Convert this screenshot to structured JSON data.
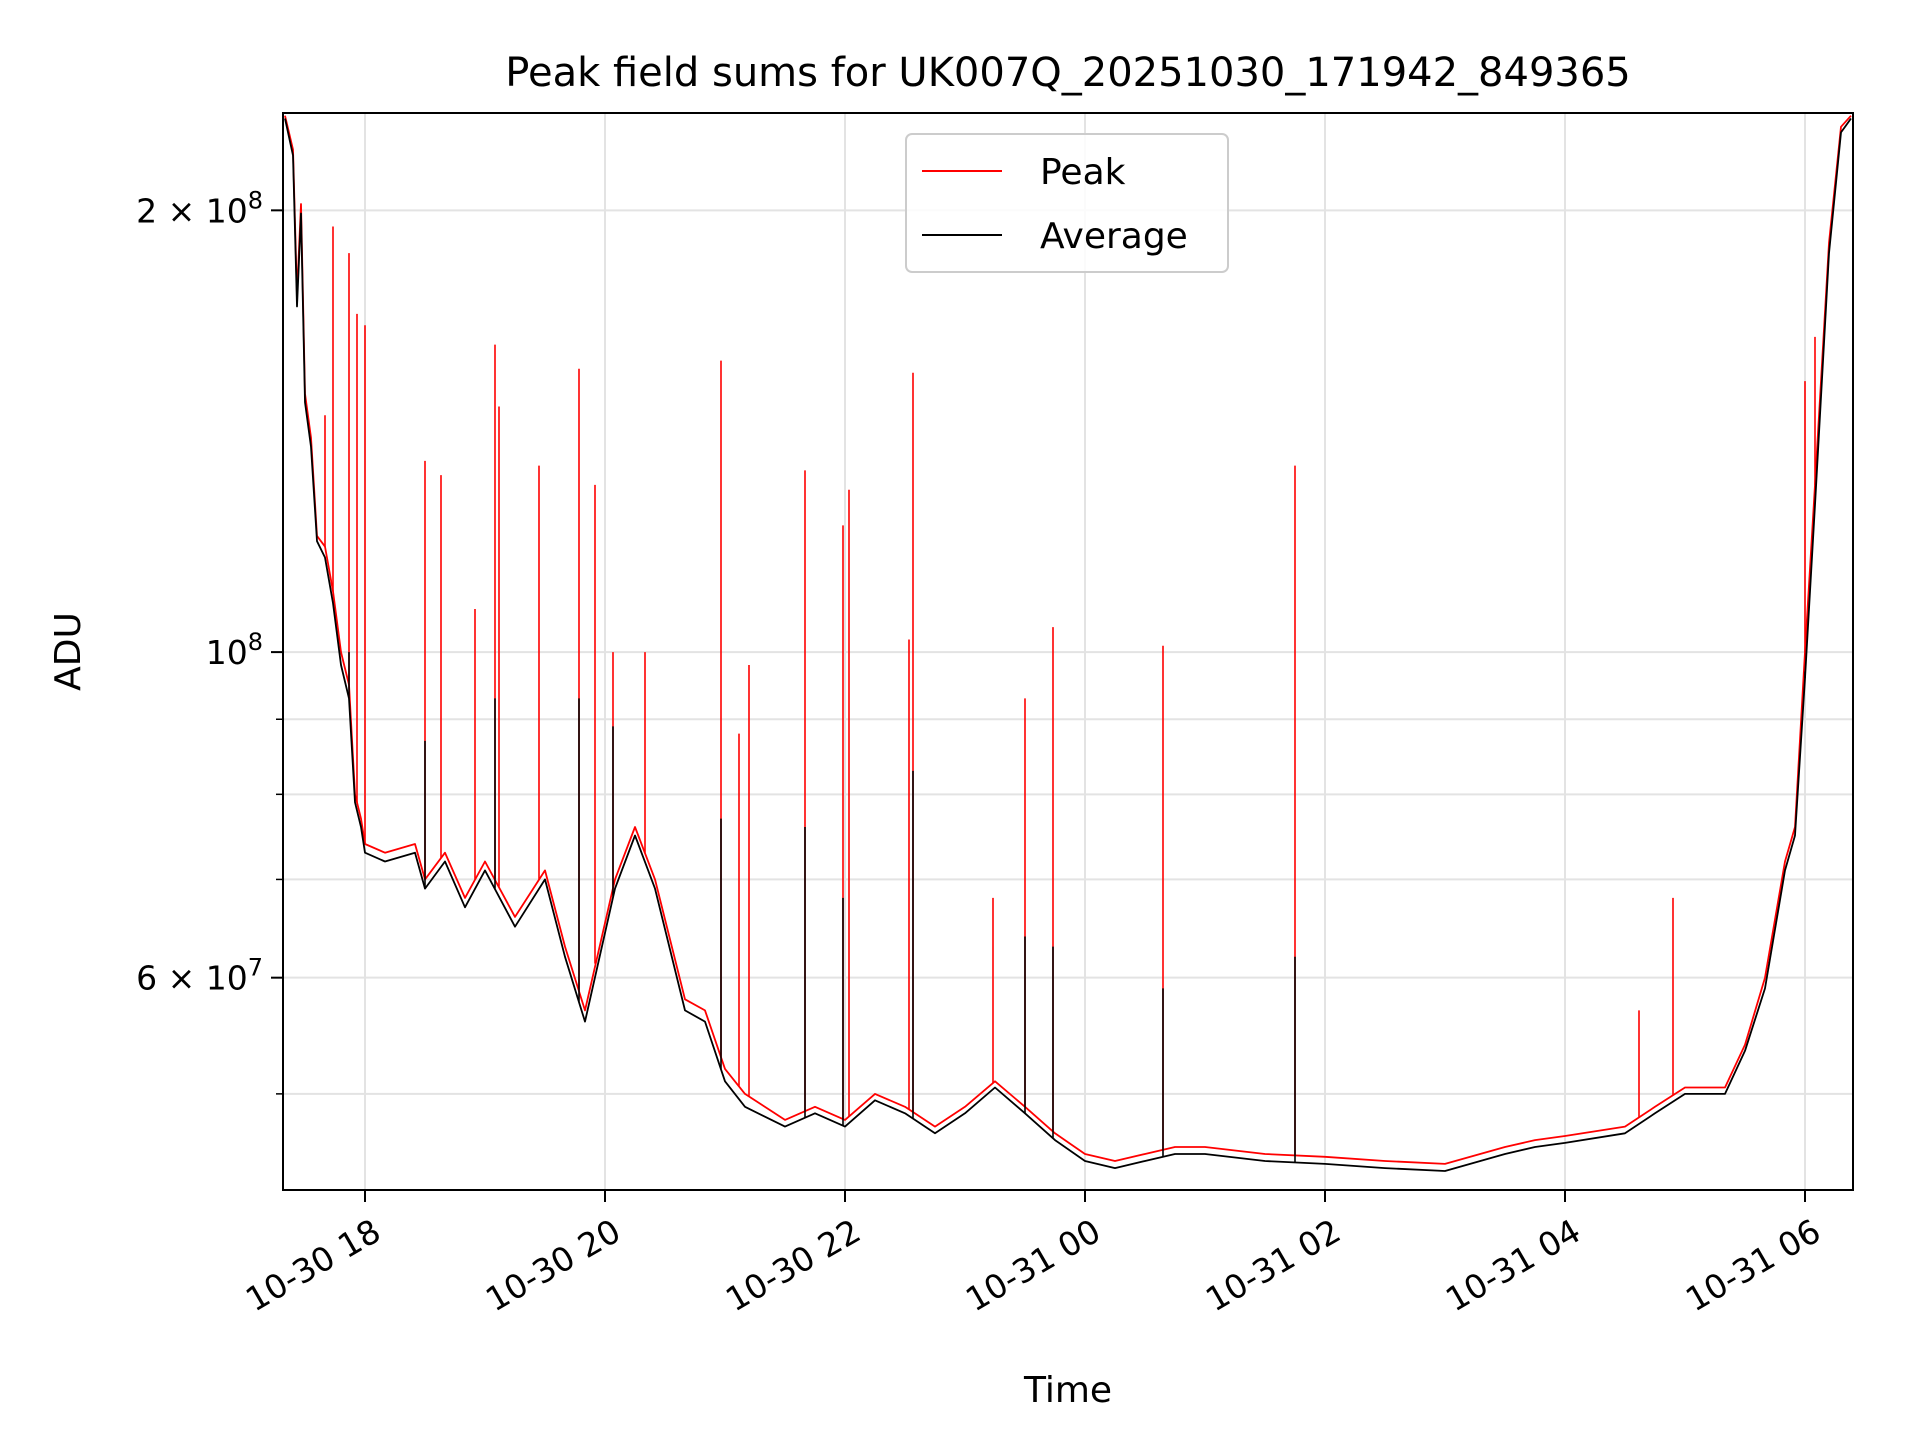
{
  "chart_data": {
    "type": "line",
    "title": "Peak field sums for UK007Q_20251030_171942_849365",
    "xlabel": "Time",
    "ylabel": "ADU",
    "x_range": [
      "2025-10-30 17:19",
      "2025-10-31 06:24"
    ],
    "y_scale": "log",
    "ylim": [
      43000000,
      233000000
    ],
    "grid": true,
    "legend_position": "top-center",
    "x_ticks": [
      "10-30 18",
      "10-30 20",
      "10-30 22",
      "10-31 00",
      "10-31 02",
      "10-31 04",
      "10-31 06"
    ],
    "x_tick_times": [
      "2025-10-30 18:00",
      "2025-10-30 20:00",
      "2025-10-30 22:00",
      "2025-10-31 00:00",
      "2025-10-31 02:00",
      "2025-10-31 04:00",
      "2025-10-31 06:00"
    ],
    "y_ticks": [
      {
        "value": 200000000,
        "base": "2 × 10",
        "exp": "8"
      },
      {
        "value": 100000000,
        "base": "10",
        "exp": "8"
      },
      {
        "value": 60000000,
        "base": "6 × 10",
        "exp": "7"
      }
    ],
    "y_minor_ticks": [
      50000000,
      70000000,
      80000000,
      90000000
    ],
    "series": [
      {
        "name": "Peak",
        "color": "#ff0000",
        "points": [
          [
            "2025-10-30 17:20",
            232000000
          ],
          [
            "2025-10-30 17:24",
            220000000
          ],
          [
            "2025-10-30 17:26",
            175000000
          ],
          [
            "2025-10-30 17:28",
            202000000
          ],
          [
            "2025-10-30 17:30",
            150000000
          ],
          [
            "2025-10-30 17:33",
            140000000
          ],
          [
            "2025-10-30 17:36",
            120000000
          ],
          [
            "2025-10-30 17:40",
            118000000
          ],
          [
            "2025-10-30 17:44",
            110000000
          ],
          [
            "2025-10-30 17:48",
            100000000
          ],
          [
            "2025-10-30 17:52",
            95000000
          ],
          [
            "2025-10-30 17:55",
            80000000
          ],
          [
            "2025-10-30 17:58",
            77000000
          ],
          [
            "2025-10-30 18:00",
            74000000
          ],
          [
            "2025-10-30 18:10",
            73000000
          ],
          [
            "2025-10-30 18:25",
            74000000
          ],
          [
            "2025-10-30 18:30",
            70000000
          ],
          [
            "2025-10-30 18:40",
            73000000
          ],
          [
            "2025-10-30 18:50",
            68000000
          ],
          [
            "2025-10-30 19:00",
            72000000
          ],
          [
            "2025-10-30 19:15",
            66000000
          ],
          [
            "2025-10-30 19:30",
            71000000
          ],
          [
            "2025-10-30 19:40",
            63000000
          ],
          [
            "2025-10-30 19:50",
            57000000
          ],
          [
            "2025-10-30 20:05",
            70000000
          ],
          [
            "2025-10-30 20:15",
            76000000
          ],
          [
            "2025-10-30 20:25",
            70000000
          ],
          [
            "2025-10-30 20:40",
            58000000
          ],
          [
            "2025-10-30 20:50",
            57000000
          ],
          [
            "2025-10-30 21:00",
            52000000
          ],
          [
            "2025-10-30 21:10",
            50000000
          ],
          [
            "2025-10-30 21:30",
            48000000
          ],
          [
            "2025-10-30 21:45",
            49000000
          ],
          [
            "2025-10-30 22:00",
            48000000
          ],
          [
            "2025-10-30 22:15",
            50000000
          ],
          [
            "2025-10-30 22:30",
            49000000
          ],
          [
            "2025-10-30 22:45",
            47500000
          ],
          [
            "2025-10-30 23:00",
            49000000
          ],
          [
            "2025-10-30 23:15",
            51000000
          ],
          [
            "2025-10-30 23:30",
            49000000
          ],
          [
            "2025-10-30 23:45",
            47000000
          ],
          [
            "2025-10-31 00:00",
            45500000
          ],
          [
            "2025-10-31 00:15",
            45000000
          ],
          [
            "2025-10-31 00:30",
            45500000
          ],
          [
            "2025-10-31 00:45",
            46000000
          ],
          [
            "2025-10-31 01:00",
            46000000
          ],
          [
            "2025-10-31 01:30",
            45500000
          ],
          [
            "2025-10-31 02:00",
            45300000
          ],
          [
            "2025-10-31 02:30",
            45000000
          ],
          [
            "2025-10-31 03:00",
            44800000
          ],
          [
            "2025-10-31 03:30",
            46000000
          ],
          [
            "2025-10-31 03:45",
            46500000
          ],
          [
            "2025-10-31 04:00",
            46800000
          ],
          [
            "2025-10-31 04:30",
            47500000
          ],
          [
            "2025-10-31 04:45",
            49000000
          ],
          [
            "2025-10-31 05:00",
            50500000
          ],
          [
            "2025-10-31 05:20",
            50500000
          ],
          [
            "2025-10-31 05:30",
            54000000
          ],
          [
            "2025-10-31 05:40",
            60000000
          ],
          [
            "2025-10-31 05:50",
            72000000
          ],
          [
            "2025-10-31 05:55",
            76000000
          ],
          [
            "2025-10-31 06:00",
            100000000
          ],
          [
            "2025-10-31 06:05",
            130000000
          ],
          [
            "2025-10-31 06:12",
            190000000
          ],
          [
            "2025-10-31 06:18",
            228000000
          ],
          [
            "2025-10-31 06:23",
            232000000
          ]
        ],
        "spikes": [
          [
            "2025-10-30 17:40",
            145000000
          ],
          [
            "2025-10-30 17:44",
            195000000
          ],
          [
            "2025-10-30 17:52",
            187000000
          ],
          [
            "2025-10-30 17:56",
            170000000
          ],
          [
            "2025-10-30 18:00",
            167000000
          ],
          [
            "2025-10-30 18:30",
            135000000
          ],
          [
            "2025-10-30 18:38",
            132000000
          ],
          [
            "2025-10-30 18:55",
            107000000
          ],
          [
            "2025-10-30 19:05",
            162000000
          ],
          [
            "2025-10-30 19:07",
            147000000
          ],
          [
            "2025-10-30 19:27",
            134000000
          ],
          [
            "2025-10-30 19:47",
            156000000
          ],
          [
            "2025-10-30 19:55",
            130000000
          ],
          [
            "2025-10-30 20:04",
            100000000
          ],
          [
            "2025-10-30 20:20",
            100000000
          ],
          [
            "2025-10-30 20:58",
            158000000
          ],
          [
            "2025-10-30 21:07",
            88000000
          ],
          [
            "2025-10-30 21:12",
            98000000
          ],
          [
            "2025-10-30 21:40",
            133000000
          ],
          [
            "2025-10-30 21:59",
            122000000
          ],
          [
            "2025-10-30 22:02",
            129000000
          ],
          [
            "2025-10-30 22:32",
            102000000
          ],
          [
            "2025-10-30 22:34",
            155000000
          ],
          [
            "2025-10-30 23:14",
            68000000
          ],
          [
            "2025-10-30 23:30",
            93000000
          ],
          [
            "2025-10-30 23:44",
            104000000
          ],
          [
            "2025-10-31 00:39",
            101000000
          ],
          [
            "2025-10-31 01:45",
            134000000
          ],
          [
            "2025-10-31 04:37",
            57000000
          ],
          [
            "2025-10-31 04:54",
            68000000
          ],
          [
            "2025-10-31 06:00",
            153000000
          ],
          [
            "2025-10-31 06:05",
            164000000
          ]
        ]
      },
      {
        "name": "Average",
        "color": "#000000",
        "points": [
          [
            "2025-10-30 17:20",
            231000000
          ],
          [
            "2025-10-30 17:24",
            218000000
          ],
          [
            "2025-10-30 17:26",
            172000000
          ],
          [
            "2025-10-30 17:28",
            199000000
          ],
          [
            "2025-10-30 17:30",
            148000000
          ],
          [
            "2025-10-30 17:33",
            138000000
          ],
          [
            "2025-10-30 17:36",
            119000000
          ],
          [
            "2025-10-30 17:40",
            116000000
          ],
          [
            "2025-10-30 17:44",
            108000000
          ],
          [
            "2025-10-30 17:48",
            98000000
          ],
          [
            "2025-10-30 17:52",
            93000000
          ],
          [
            "2025-10-30 17:55",
            79000000
          ],
          [
            "2025-10-30 17:58",
            76000000
          ],
          [
            "2025-10-30 18:00",
            73000000
          ],
          [
            "2025-10-30 18:10",
            72000000
          ],
          [
            "2025-10-30 18:25",
            73000000
          ],
          [
            "2025-10-30 18:30",
            69000000
          ],
          [
            "2025-10-30 18:40",
            72000000
          ],
          [
            "2025-10-30 18:50",
            67000000
          ],
          [
            "2025-10-30 19:00",
            71000000
          ],
          [
            "2025-10-30 19:15",
            65000000
          ],
          [
            "2025-10-30 19:30",
            70000000
          ],
          [
            "2025-10-30 19:40",
            62000000
          ],
          [
            "2025-10-30 19:50",
            56000000
          ],
          [
            "2025-10-30 20:05",
            69000000
          ],
          [
            "2025-10-30 20:15",
            75000000
          ],
          [
            "2025-10-30 20:25",
            69000000
          ],
          [
            "2025-10-30 20:40",
            57000000
          ],
          [
            "2025-10-30 20:50",
            56000000
          ],
          [
            "2025-10-30 21:00",
            51000000
          ],
          [
            "2025-10-30 21:10",
            49000000
          ],
          [
            "2025-10-30 21:30",
            47500000
          ],
          [
            "2025-10-30 21:45",
            48500000
          ],
          [
            "2025-10-30 22:00",
            47500000
          ],
          [
            "2025-10-30 22:15",
            49500000
          ],
          [
            "2025-10-30 22:30",
            48500000
          ],
          [
            "2025-10-30 22:45",
            47000000
          ],
          [
            "2025-10-30 23:00",
            48500000
          ],
          [
            "2025-10-30 23:15",
            50500000
          ],
          [
            "2025-10-30 23:30",
            48500000
          ],
          [
            "2025-10-30 23:45",
            46500000
          ],
          [
            "2025-10-31 00:00",
            45000000
          ],
          [
            "2025-10-31 00:15",
            44500000
          ],
          [
            "2025-10-31 00:30",
            45000000
          ],
          [
            "2025-10-31 00:45",
            45500000
          ],
          [
            "2025-10-31 01:00",
            45500000
          ],
          [
            "2025-10-31 01:30",
            45000000
          ],
          [
            "2025-10-31 02:00",
            44800000
          ],
          [
            "2025-10-31 02:30",
            44500000
          ],
          [
            "2025-10-31 03:00",
            44300000
          ],
          [
            "2025-10-31 03:30",
            45500000
          ],
          [
            "2025-10-31 03:45",
            46000000
          ],
          [
            "2025-10-31 04:00",
            46300000
          ],
          [
            "2025-10-31 04:30",
            47000000
          ],
          [
            "2025-10-31 04:45",
            48500000
          ],
          [
            "2025-10-31 05:00",
            50000000
          ],
          [
            "2025-10-31 05:20",
            50000000
          ],
          [
            "2025-10-31 05:30",
            53500000
          ],
          [
            "2025-10-31 05:40",
            59000000
          ],
          [
            "2025-10-31 05:50",
            71000000
          ],
          [
            "2025-10-31 05:55",
            75000000
          ],
          [
            "2025-10-31 06:00",
            96000000
          ],
          [
            "2025-10-31 06:05",
            126000000
          ],
          [
            "2025-10-31 06:12",
            187000000
          ],
          [
            "2025-10-31 06:18",
            226000000
          ],
          [
            "2025-10-31 06:23",
            231000000
          ]
        ],
        "spikes": [
          [
            "2025-10-30 17:52",
            100000000
          ],
          [
            "2025-10-30 18:30",
            87000000
          ],
          [
            "2025-10-30 19:05",
            93000000
          ],
          [
            "2025-10-30 19:47",
            93000000
          ],
          [
            "2025-10-30 20:04",
            89000000
          ],
          [
            "2025-10-30 20:58",
            77000000
          ],
          [
            "2025-10-30 21:40",
            76000000
          ],
          [
            "2025-10-30 21:59",
            68000000
          ],
          [
            "2025-10-30 22:34",
            83000000
          ],
          [
            "2025-10-30 23:30",
            64000000
          ],
          [
            "2025-10-30 23:44",
            63000000
          ],
          [
            "2025-10-31 00:39",
            59000000
          ],
          [
            "2025-10-31 01:45",
            62000000
          ],
          [
            "2025-10-31 06:00",
            97000000
          ]
        ]
      }
    ]
  }
}
